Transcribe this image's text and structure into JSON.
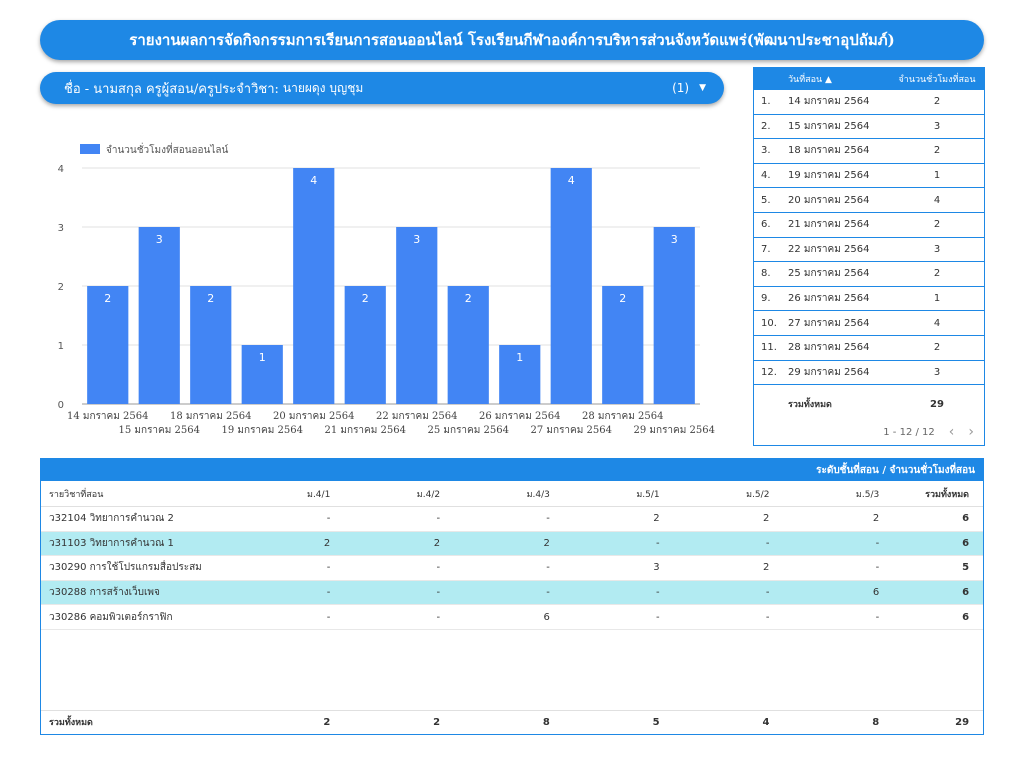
{
  "title": "รายงานผลการจัดกิจกรรมการเรียนการสอนออนไลน์ โรงเรียนกีฬาองค์การบริหารส่วนจังหวัดแพร่(พัฒนาประชาอุปถัมภ์)",
  "filter": {
    "label": "ชื่อ - นามสกุล ครูผู้สอน/ครูประจำวิชา:",
    "value": "นายผดุง บุญชุม",
    "count": "(1)"
  },
  "chart_data": {
    "type": "bar",
    "series": [
      {
        "name": "จำนวนชั่วโมงที่สอนออนไลน์",
        "values": [
          2,
          3,
          2,
          1,
          4,
          2,
          3,
          2,
          1,
          4,
          2,
          3
        ]
      }
    ],
    "categories": [
      "14 มกราคม 2564",
      "15 มกราคม 2564",
      "18 มกราคม 2564",
      "19 มกราคม 2564",
      "20 มกราคม 2564",
      "21 มกราคม 2564",
      "22 มกราคม 2564",
      "25 มกราคม 2564",
      "26 มกราคม 2564",
      "27 มกราคม 2564",
      "28 มกราคม 2564",
      "29 มกราคม 2564"
    ],
    "yticks": [
      "0",
      "1",
      "2",
      "3",
      "4"
    ],
    "ylim": [
      0,
      4
    ],
    "legend_position": "top-left",
    "grid": true,
    "color": "#4285f4"
  },
  "date_table": {
    "headers": {
      "date": "วันที่สอน ▲",
      "hours": "จำนวนชั่วโมงที่สอน"
    },
    "rows": [
      {
        "idx": "1.",
        "date": "14 มกราคม 2564",
        "hours": "2"
      },
      {
        "idx": "2.",
        "date": "15 มกราคม 2564",
        "hours": "3"
      },
      {
        "idx": "3.",
        "date": "18 มกราคม 2564",
        "hours": "2"
      },
      {
        "idx": "4.",
        "date": "19 มกราคม 2564",
        "hours": "1"
      },
      {
        "idx": "5.",
        "date": "20 มกราคม 2564",
        "hours": "4"
      },
      {
        "idx": "6.",
        "date": "21 มกราคม 2564",
        "hours": "2"
      },
      {
        "idx": "7.",
        "date": "22 มกราคม 2564",
        "hours": "3"
      },
      {
        "idx": "8.",
        "date": "25 มกราคม 2564",
        "hours": "2"
      },
      {
        "idx": "9.",
        "date": "26 มกราคม 2564",
        "hours": "1"
      },
      {
        "idx": "10.",
        "date": "27 มกราคม 2564",
        "hours": "4"
      },
      {
        "idx": "11.",
        "date": "28 มกราคม 2564",
        "hours": "2"
      },
      {
        "idx": "12.",
        "date": "29 มกราคม 2564",
        "hours": "3"
      }
    ],
    "total_label": "รวมทั้งหมด",
    "total_value": "29",
    "pager": "1 - 12 / 12",
    "prev_icon": "‹",
    "next_icon": "›"
  },
  "pivot": {
    "header": "ระดับชั้นที่สอน / จำนวนชั่วโมงที่สอน",
    "subject_header": "รายวิชาที่สอน",
    "columns": [
      "ม.4/1",
      "ม.4/2",
      "ม.4/3",
      "ม.5/1",
      "ม.5/2",
      "ม.5/3"
    ],
    "total_header": "รวมทั้งหมด",
    "rows": [
      {
        "subject": "ว32104 วิทยาการคำนวณ 2",
        "cells": [
          "-",
          "-",
          "-",
          "2",
          "2",
          "2"
        ],
        "total": "6",
        "highlight": false
      },
      {
        "subject": "ว31103 วิทยาการคำนวณ 1",
        "cells": [
          "2",
          "2",
          "2",
          "-",
          "-",
          "-"
        ],
        "total": "6",
        "highlight": true
      },
      {
        "subject": "ว30290 การใช้โปรแกรมสื่อประสม",
        "cells": [
          "-",
          "-",
          "-",
          "3",
          "2",
          "-"
        ],
        "total": "5",
        "highlight": false
      },
      {
        "subject": "ว30288 การสร้างเว็บเพจ",
        "cells": [
          "-",
          "-",
          "-",
          "-",
          "-",
          "6"
        ],
        "total": "6",
        "highlight": true
      },
      {
        "subject": "ว30286 คอมพิวเตอร์กราฟิก",
        "cells": [
          "-",
          "-",
          "6",
          "-",
          "-",
          "-"
        ],
        "total": "6",
        "highlight": false
      }
    ],
    "totals_label": "รวมทั้งหมด",
    "totals": [
      "2",
      "2",
      "8",
      "5",
      "4",
      "8"
    ],
    "grand_total": "29"
  }
}
